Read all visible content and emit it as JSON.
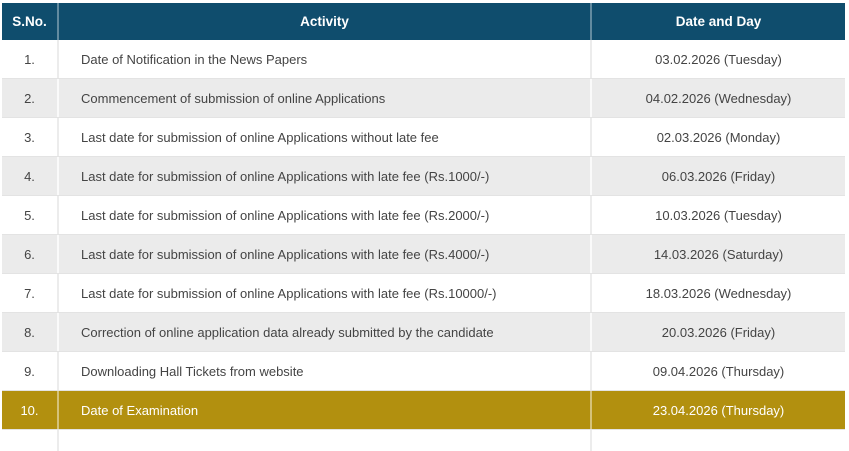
{
  "table": {
    "columns": [
      {
        "label": "S.No."
      },
      {
        "label": "Activity"
      },
      {
        "label": "Date and Day"
      }
    ],
    "rows": [
      {
        "sno": "1.",
        "activity": "Date of Notification in the News Papers",
        "date": "03.02.2026 (Tuesday)",
        "highlight": false
      },
      {
        "sno": "2.",
        "activity": "Commencement of submission of online Applications",
        "date": "04.02.2026 (Wednesday)",
        "highlight": false
      },
      {
        "sno": "3.",
        "activity": "Last date for submission of online Applications without late fee",
        "date": "02.03.2026 (Monday)",
        "highlight": false
      },
      {
        "sno": "4.",
        "activity": "Last date for submission of online Applications with late fee (Rs.1000/-)",
        "date": "06.03.2026 (Friday)",
        "highlight": false
      },
      {
        "sno": "5.",
        "activity": "Last date for submission of online Applications with late fee (Rs.2000/-)",
        "date": "10.03.2026 (Tuesday)",
        "highlight": false
      },
      {
        "sno": "6.",
        "activity": "Last date for submission of online Applications with late fee (Rs.4000/-)",
        "date": "14.03.2026 (Saturday)",
        "highlight": false
      },
      {
        "sno": "7.",
        "activity": "Last date for submission of online Applications with late fee (Rs.10000/-)",
        "date": "18.03.2026 (Wednesday)",
        "highlight": false
      },
      {
        "sno": "8.",
        "activity": "Correction of online application data already submitted by the candidate",
        "date": "20.03.2026 (Friday)",
        "highlight": false
      },
      {
        "sno": "9.",
        "activity": "Downloading Hall Tickets from website",
        "date": "09.04.2026 (Thursday)",
        "highlight": false
      },
      {
        "sno": "10.",
        "activity": "Date of Examination",
        "date": "23.04.2026 (Thursday)",
        "highlight": true
      }
    ]
  },
  "colors": {
    "header_bg": "#0F4D6D",
    "highlight_bg": "#B2900F",
    "stripe_bg": "#EBEBEB",
    "text": "#444444"
  }
}
